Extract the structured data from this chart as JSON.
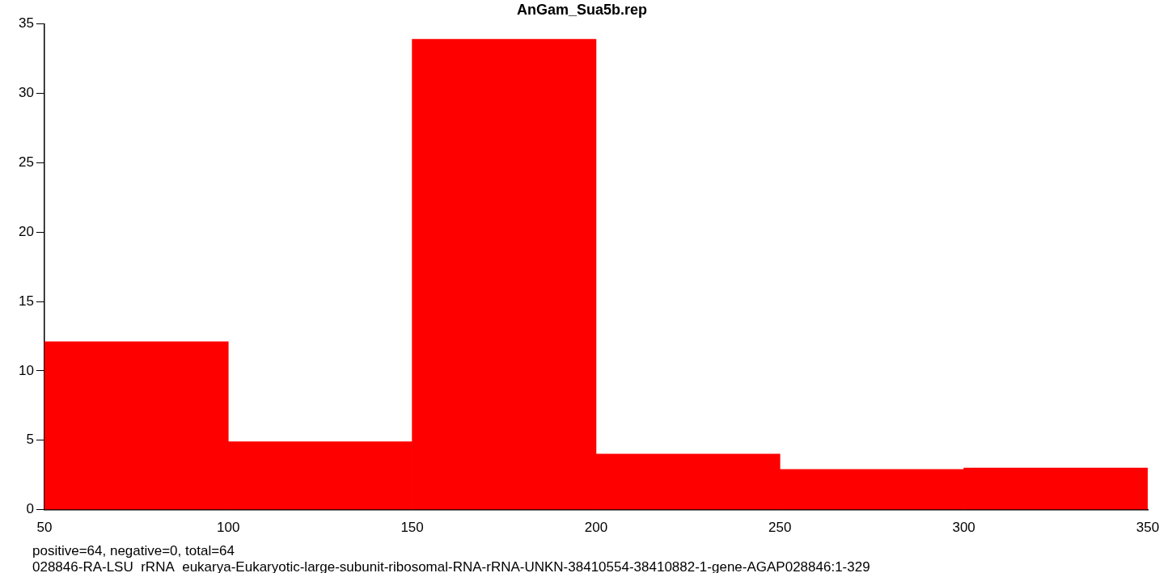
{
  "chart_data": {
    "type": "histogram",
    "title": "AnGam_Sua5b.rep",
    "bins": [
      50,
      100,
      150,
      200,
      250,
      300,
      350
    ],
    "values": [
      12.1,
      4.9,
      33.9,
      4,
      2.9,
      3
    ],
    "color": "#ff0000",
    "xlim": [
      50,
      350
    ],
    "xticks": [
      50,
      100,
      150,
      200,
      250,
      300,
      350
    ],
    "ylim": [
      0,
      35
    ],
    "yticks": [
      0,
      5,
      10,
      15,
      20,
      25,
      30,
      35
    ],
    "grid": false,
    "legend": false,
    "annotations": [
      "positive=64, negative=0, total=64",
      "028846-RA-LSU_rRNA_eukarya-Eukaryotic-large-subunit-ribosomal-RNA-rRNA-UNKN-38410554-38410882-1-gene-AGAP028846:1-329"
    ]
  }
}
